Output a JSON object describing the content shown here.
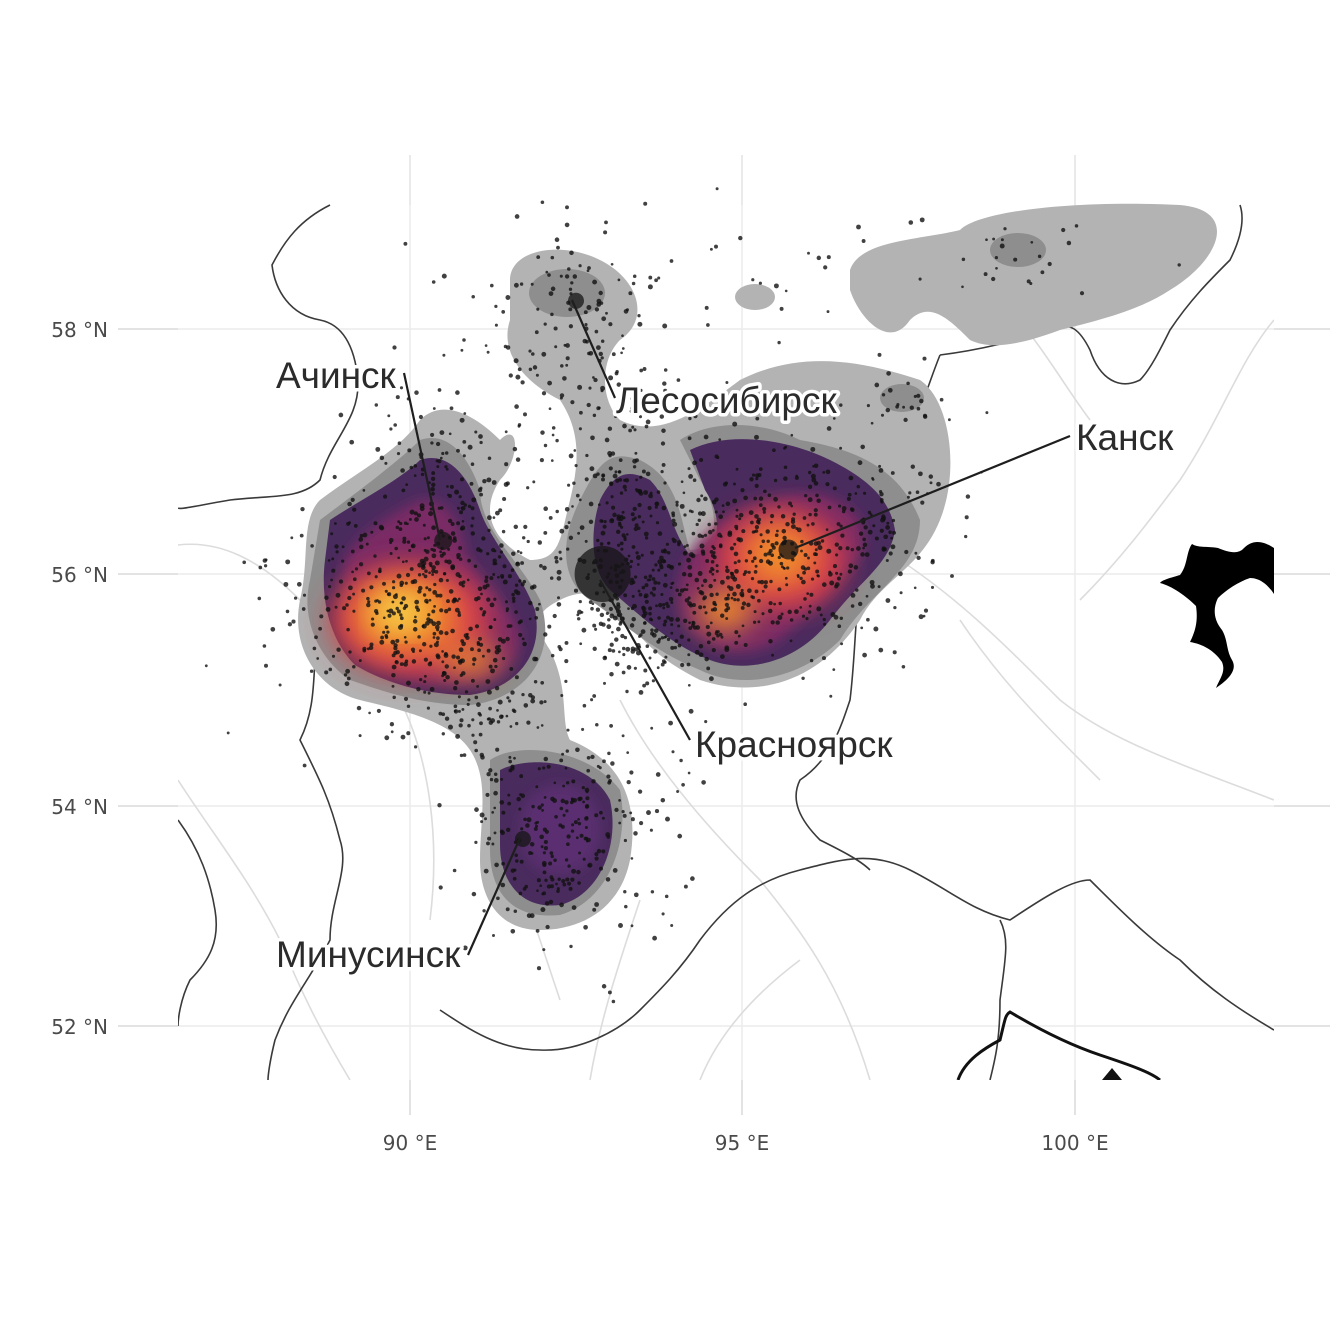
{
  "map": {
    "type": "density-map",
    "x_axis": {
      "ticks": [
        {
          "value": 90,
          "label": "90 °E"
        },
        {
          "value": 95,
          "label": "95 °E"
        },
        {
          "value": 100,
          "label": "100 °E"
        }
      ],
      "range": [
        86.5,
        103
      ]
    },
    "y_axis": {
      "ticks": [
        {
          "value": 52,
          "label": "52 °N"
        },
        {
          "value": 54,
          "label": "54 °N"
        },
        {
          "value": 56,
          "label": "56 °N"
        },
        {
          "value": 58,
          "label": "58 °N"
        }
      ],
      "range": [
        51.5,
        59.5
      ]
    },
    "grid": true,
    "density_palette": [
      "#b3b3b3",
      "#8e8e8e",
      "#6b6b73",
      "#5a3d69",
      "#3a1f4e",
      "#8a2a63",
      "#c8344b",
      "#e8602b",
      "#f3a126",
      "#f4d34b"
    ],
    "cities": [
      {
        "name": "Ачинск",
        "lon": 90.5,
        "lat": 56.27
      },
      {
        "name": "Лесосибирск",
        "lon": 92.5,
        "lat": 58.23
      },
      {
        "name": "Канск",
        "lon": 95.7,
        "lat": 56.2
      },
      {
        "name": "Красноярск",
        "lon": 92.9,
        "lat": 56.0
      },
      {
        "name": "Минусинск",
        "lon": 91.7,
        "lat": 53.7
      }
    ]
  }
}
